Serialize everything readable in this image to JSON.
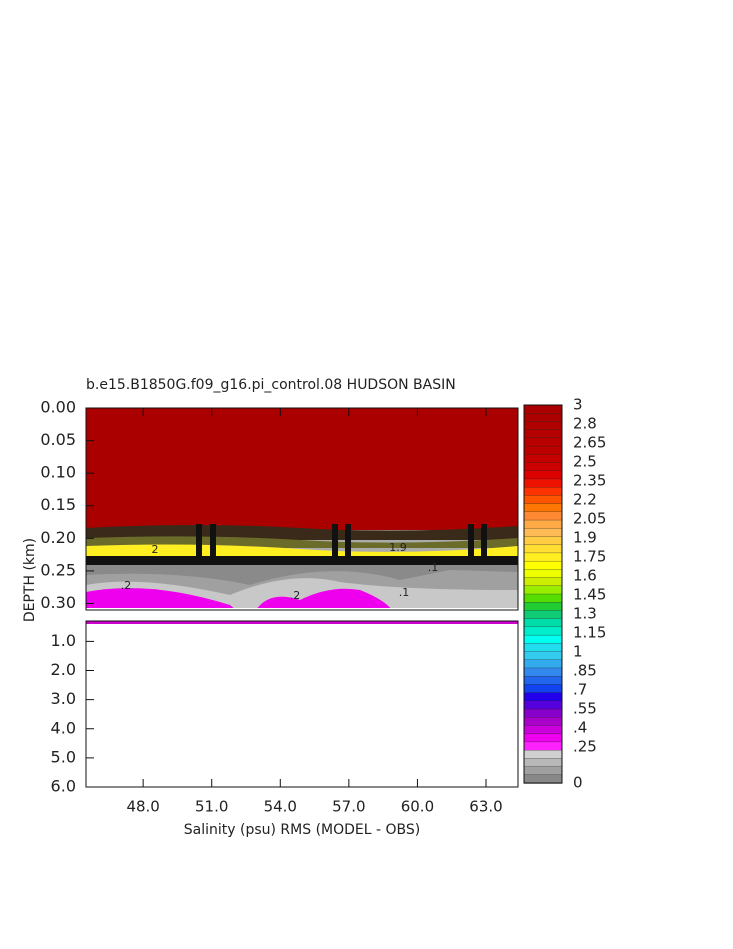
{
  "chart_data": {
    "type": "contour",
    "title": "b.e15.B1850G.f09_g16.pi_control.08 HUDSON BASIN",
    "x_label": "Salinity (psu) RMS (MODEL - OBS)",
    "y_label": "DEPTH (km)",
    "xlim": [
      45.5,
      64.4
    ],
    "xticks": [
      {
        "value": 48,
        "label": "48.0"
      },
      {
        "value": 51,
        "label": "51.0"
      },
      {
        "value": 54,
        "label": "54.0"
      },
      {
        "value": 57,
        "label": "57.0"
      },
      {
        "value": 60,
        "label": "60.0"
      },
      {
        "value": 63,
        "label": "63.0"
      }
    ],
    "ylim_upper": [
      0,
      0.31
    ],
    "yticks_upper": [
      {
        "value": 0,
        "label": "0.00"
      },
      {
        "value": 0.05,
        "label": "0.05"
      },
      {
        "value": 0.1,
        "label": "0.10"
      },
      {
        "value": 0.15,
        "label": "0.15"
      },
      {
        "value": 0.2,
        "label": "0.20"
      },
      {
        "value": 0.25,
        "label": "0.25"
      },
      {
        "value": 0.3,
        "label": "0.30"
      }
    ],
    "ylim_lower": [
      0.3,
      6
    ],
    "yticks_lower": [
      {
        "value": 1,
        "label": "1.0"
      },
      {
        "value": 2,
        "label": "2.0"
      },
      {
        "value": 3,
        "label": "3.0"
      },
      {
        "value": 4,
        "label": "4.0"
      },
      {
        "value": 5,
        "label": "5.0"
      },
      {
        "value": 6,
        "label": "6.0"
      }
    ],
    "colorbar_ticks": [
      3,
      2.8,
      2.65,
      2.5,
      2.35,
      2.2,
      2.05,
      1.9,
      1.75,
      1.6,
      1.45,
      1.3,
      1.15,
      1,
      {
        "value": 0.85,
        "label": ".85"
      },
      {
        "value": 0.7,
        "label": ".7"
      },
      {
        "value": 0.55,
        "label": ".55"
      },
      {
        "value": 0.4,
        "label": ".4"
      },
      {
        "value": 0.25,
        "label": ".25"
      },
      0
    ],
    "colorbar_colors": [
      "#aa0000",
      "#aa0000",
      "#b00000",
      "#b40000",
      "#b80000",
      "#bc0000",
      "#c40000",
      "#cc0000",
      "#dd0000",
      "#ee1100",
      "#ff3300",
      "#ff5500",
      "#ff7700",
      "#ff8833",
      "#ffaa44",
      "#ffbb55",
      "#ffcc44",
      "#ffdd33",
      "#ffee22",
      "#ffff00",
      "#eeff00",
      "#ccee00",
      "#99ee00",
      "#55dd00",
      "#22cc33",
      "#11cc77",
      "#00ddaa",
      "#00eecc",
      "#00ffee",
      "#22ddee",
      "#33ccee",
      "#33aaee",
      "#3388ee",
      "#2266ee",
      "#1144ee",
      "#2200ee",
      "#5500dd",
      "#8800cc",
      "#aa00cc",
      "#cc00dd",
      "#ee00ee",
      "#ff22ff",
      "#d0d0d0",
      "#b8b8b8",
      "#a0a0a0",
      "#888888"
    ],
    "annotations": [
      "2",
      "1.9",
      ".2",
      ".1",
      ".2",
      ".1"
    ]
  }
}
